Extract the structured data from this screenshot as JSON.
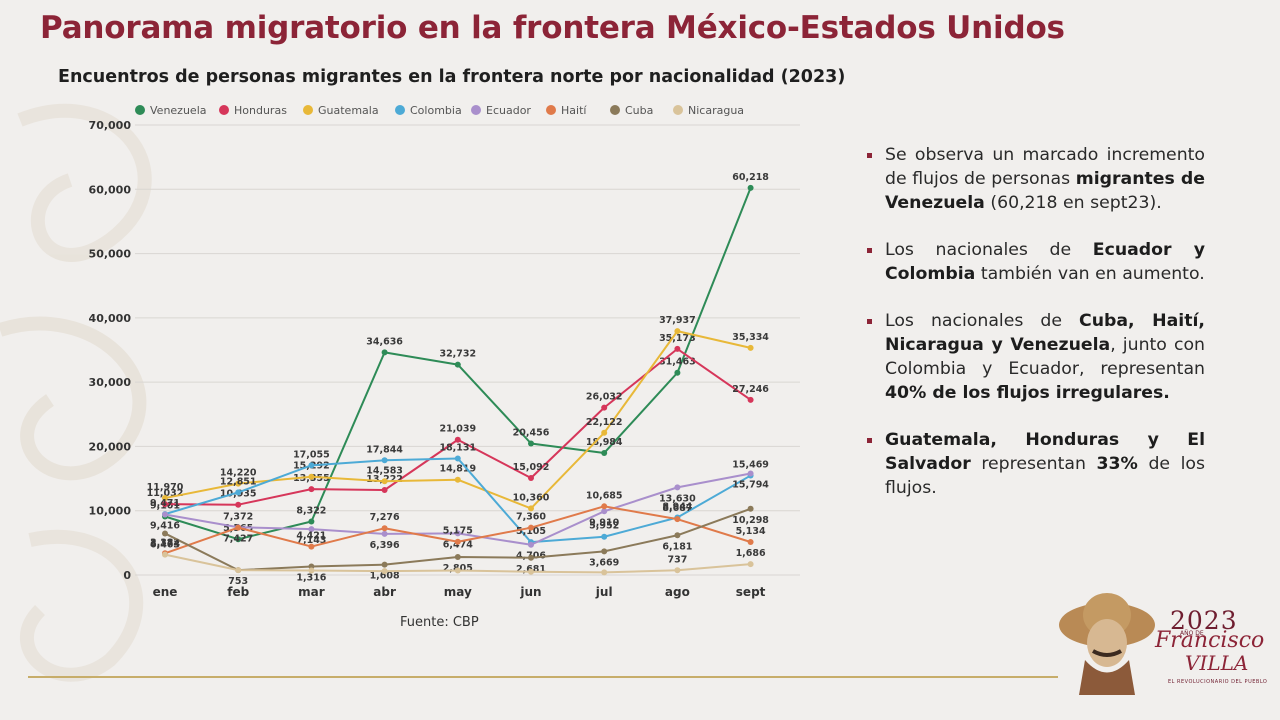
{
  "page": {
    "title": "Panorama migratorio en la frontera México-Estados Unidos",
    "source": "Fuente: CBP"
  },
  "chart_data": {
    "type": "line",
    "title": "Encuentros de personas migrantes en la frontera norte por nacionalidad (2023)",
    "x": [
      "ene",
      "feb",
      "mar",
      "abr",
      "may",
      "jun",
      "jul",
      "ago",
      "sept"
    ],
    "ylim": [
      0,
      70000
    ],
    "yticks": [
      0,
      10000,
      20000,
      30000,
      40000,
      50000,
      60000,
      70000
    ],
    "ytick_labels": [
      "0",
      "10,000",
      "20,000",
      "30,000",
      "40,000",
      "50,000",
      "60,000",
      "70,000"
    ],
    "grid": true,
    "legend_position": "top",
    "series": [
      {
        "name": "Venezuela",
        "color": "#2e8b57",
        "values": [
          9101,
          5565,
          8322,
          34636,
          32732,
          20456,
          18984,
          31463,
          60218
        ],
        "labels": [
          "9,101",
          "5,565",
          "8,322",
          "34,636",
          "32,732",
          "20,456",
          "18,984",
          "31,463",
          "60,218"
        ]
      },
      {
        "name": "Honduras",
        "color": "#d6365a",
        "values": [
          11032,
          10935,
          13355,
          13222,
          21039,
          15092,
          26032,
          35173,
          27246
        ],
        "labels": [
          "11,032",
          "10,935",
          "13,355",
          "13,222",
          "21,039",
          "15,092",
          "26,032",
          "35,173",
          "27,246"
        ]
      },
      {
        "name": "Guatemala",
        "color": "#e8b838",
        "values": [
          11970,
          14220,
          15292,
          14583,
          14819,
          10360,
          22122,
          37937,
          35334
        ],
        "labels": [
          "11,970",
          "14,220",
          "15,292",
          "14,583",
          "14,819",
          "10,360",
          "22,122",
          "37,937",
          "35,334"
        ]
      },
      {
        "name": "Colombia",
        "color": "#4daad6",
        "values": [
          9471,
          12851,
          17055,
          17844,
          18131,
          5105,
          5952,
          8944,
          15469
        ],
        "labels": [
          "9,471",
          "12,851",
          "17,055",
          "17,844",
          "18,131",
          "5,105",
          "5,952",
          "8,944",
          "15,469"
        ]
      },
      {
        "name": "Ecuador",
        "color": "#a98fcc",
        "values": [
          9416,
          7427,
          7143,
          6396,
          6474,
          4706,
          9910,
          13630,
          15794
        ],
        "labels": [
          "9,416",
          "7,427",
          "7,143",
          "6,396",
          "6,474",
          "4,706",
          "9,910",
          "13,630",
          "15,794"
        ]
      },
      {
        "name": "Haití",
        "color": "#e07a4a",
        "values": [
          3382,
          7372,
          4421,
          7276,
          5175,
          7360,
          10685,
          8687,
          5134
        ],
        "labels": [
          "3,382",
          "7,372",
          "4,421",
          "7,276",
          "5,175",
          "7,360",
          "10,685",
          "8,687",
          "5,134"
        ]
      },
      {
        "name": "Cuba",
        "color": "#8b7a5a",
        "values": [
          6463,
          753,
          1316,
          1608,
          2805,
          2681,
          3669,
          6181,
          10298
        ],
        "labels": [
          "6,463",
          "753",
          "1,316",
          "1,608",
          "2,805",
          "2,681",
          "3,669",
          "6,181",
          "10,298"
        ]
      },
      {
        "name": "Nicaragua",
        "color": "#d9c39a",
        "values": [
          3174,
          753,
          700,
          600,
          700,
          500,
          400,
          737,
          1686
        ],
        "labels": [
          "3,174",
          "",
          "",
          "",
          "",
          "",
          "",
          "737",
          "1,686"
        ]
      }
    ]
  },
  "bullets": [
    [
      {
        "t": "Se observa un marcado incremento de flujos de personas "
      },
      {
        "t": "migrantes de Venezuela",
        "b": true
      },
      {
        "t": " (60,218 en sept23)."
      }
    ],
    [
      {
        "t": "Los nacionales de "
      },
      {
        "t": "Ecuador y Colombia",
        "b": true
      },
      {
        "t": " también van en aumento."
      }
    ],
    [
      {
        "t": "Los nacionales de "
      },
      {
        "t": "Cuba, Haití, Nicaragua y Venezuela",
        "b": true
      },
      {
        "t": ", junto con Colombia y Ecuador, representan "
      },
      {
        "t": "40% de los flujos irregulares.",
        "b": true
      }
    ],
    [
      {
        "t": "Guatemala, Honduras y El Salvador",
        "b": true
      },
      {
        "t": " representan "
      },
      {
        "t": "33%",
        "b": true
      },
      {
        "t": " de los flujos."
      }
    ]
  ],
  "logo": {
    "year": "2023",
    "ano": "AÑO DE",
    "name": "Francisco",
    "villa": "VILLA",
    "sub": "EL REVOLUCIONARIO DEL PUEBLO"
  },
  "colors": {
    "brand": "#8c2437",
    "gold": "#c7ad6a"
  }
}
